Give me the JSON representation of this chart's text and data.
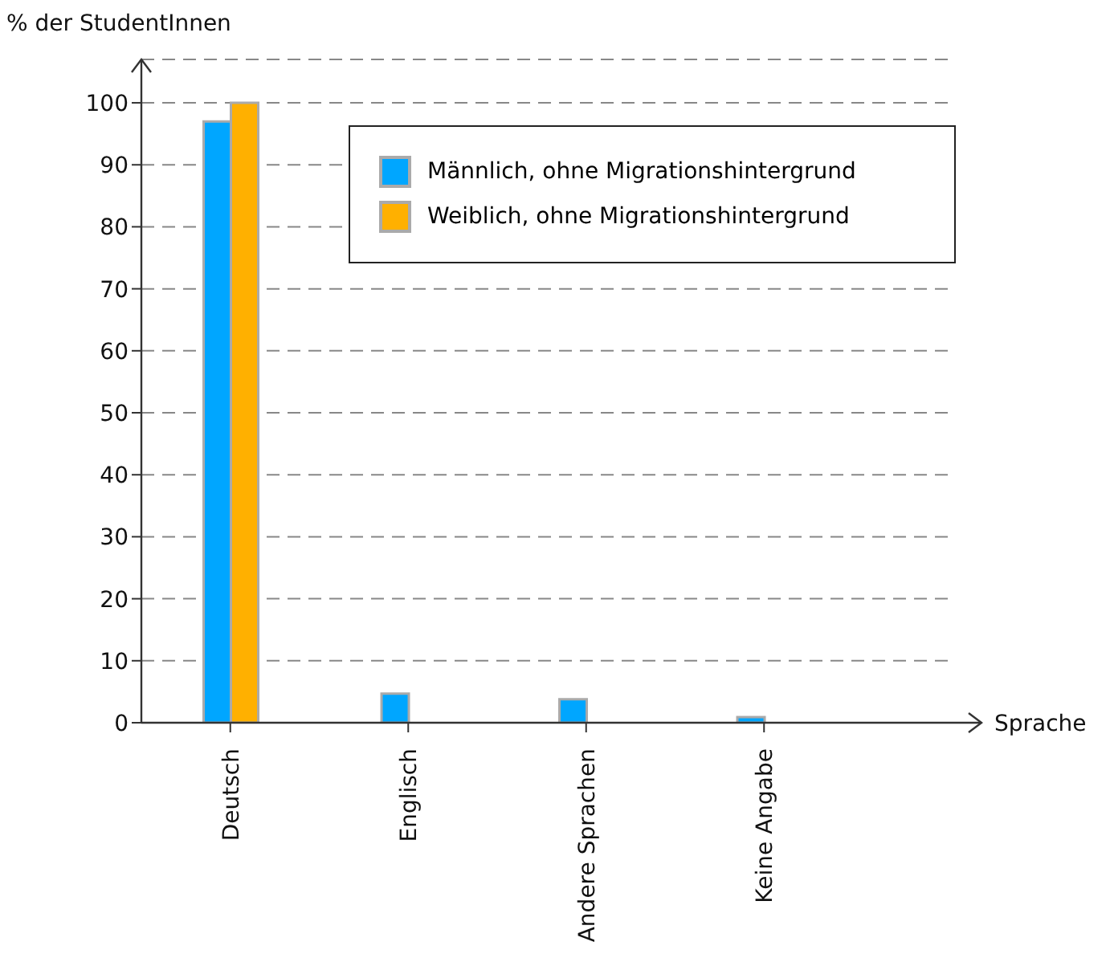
{
  "chart_data": {
    "type": "bar",
    "ylabel": "% der StudentInnen",
    "xlabel": "Sprache",
    "categories": [
      "Deutsch",
      "Englisch",
      "Andere Sprachen",
      "Keine Angabe"
    ],
    "series": [
      {
        "name": "Männlich, ohne Migrationshintergrund",
        "color": "#00a6ff",
        "values": [
          97,
          4.7,
          3.8,
          0.9
        ]
      },
      {
        "name": "Weiblich, ohne Migrationshintergrund",
        "color": "#ffb000",
        "values": [
          100,
          0,
          0,
          0
        ]
      }
    ],
    "ylim": [
      0,
      107
    ],
    "yticks": [
      0,
      10,
      20,
      30,
      40,
      50,
      60,
      70,
      80,
      90,
      100
    ],
    "grid": "y",
    "legend": "top right"
  }
}
